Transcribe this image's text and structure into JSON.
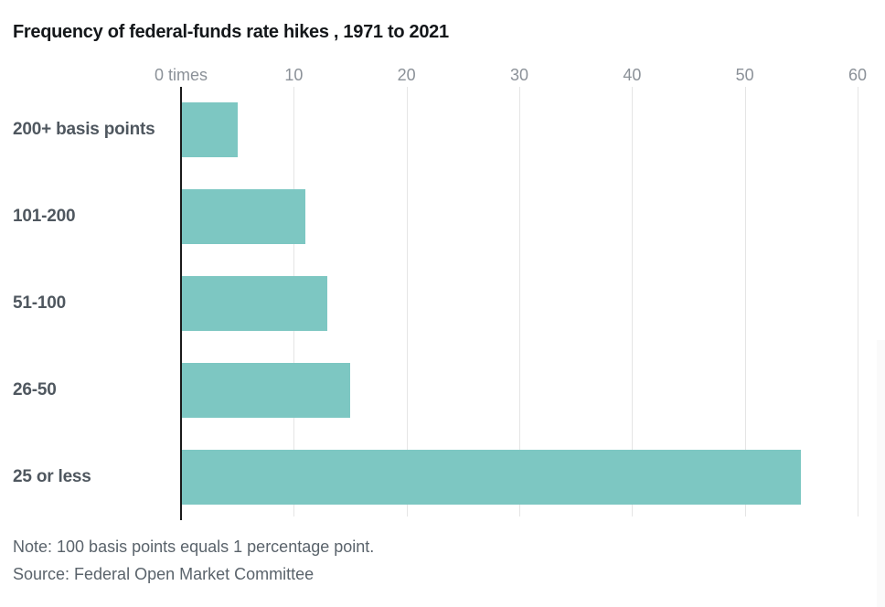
{
  "title": "Frequency of federal-funds rate hikes , 1971 to 2021",
  "note": "Note: 100 basis points equals 1 percentage point.",
  "source": "Source: Federal Open Market Committee",
  "colors": {
    "bar": "#7dc7c2",
    "gridline": "#e5e5e5",
    "axis_line": "#1a1a1a",
    "title_text": "#14171a",
    "category_text": "#4f575f",
    "tick_text": "#8b9198",
    "note_text": "#5a636b"
  },
  "chart_data": {
    "type": "bar",
    "orientation": "horizontal",
    "title": "Frequency of federal-funds rate hikes , 1971 to 2021",
    "categories": [
      "200+ basis points",
      "101-200",
      "51-100",
      "26-50",
      "25 or less"
    ],
    "values": [
      5,
      11,
      13,
      15,
      55
    ],
    "xlabel": "",
    "ylabel": "",
    "xlim": [
      0,
      60
    ],
    "xticks": [
      0,
      10,
      20,
      30,
      40,
      50,
      60
    ],
    "xtick_labels": [
      "0 times",
      "10",
      "20",
      "30",
      "40",
      "50",
      "60"
    ],
    "grid": true,
    "legend": false,
    "note": "Note: 100 basis points equals 1 percentage point.",
    "source": "Source: Federal Open Market Committee"
  }
}
